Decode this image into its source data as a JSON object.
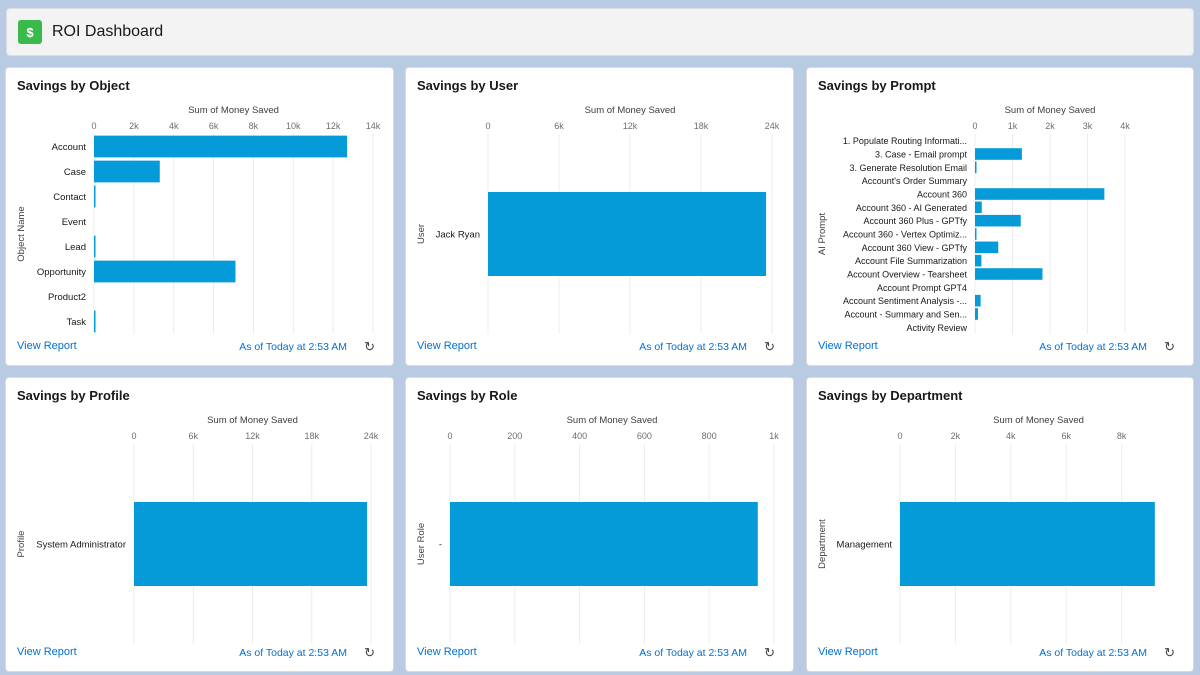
{
  "header": {
    "title": "ROI Dashboard",
    "icon": "money-bag-icon",
    "icon_color": "#3bba4c"
  },
  "colors": {
    "bar": "#049bd8",
    "link": "#0070d2"
  },
  "common": {
    "view_report": "View Report",
    "as_of": "As of Today at 2:53 AM"
  },
  "chart_data": [
    {
      "type": "bar",
      "orientation": "horizontal",
      "title": "Savings by Object",
      "xlabel": "Sum of Money Saved",
      "ylabel": "Object Name",
      "ticks": [
        "0",
        "2k",
        "4k",
        "6k",
        "8k",
        "10k",
        "12k",
        "14k"
      ],
      "xlim": [
        0,
        14000
      ],
      "categories": [
        "Account",
        "Case",
        "Contact",
        "Event",
        "Lead",
        "Opportunity",
        "Product2",
        "Task"
      ],
      "values": [
        12700,
        3300,
        60,
        0,
        20,
        7100,
        0,
        60
      ]
    },
    {
      "type": "bar",
      "orientation": "horizontal",
      "title": "Savings by User",
      "xlabel": "Sum of Money Saved",
      "ylabel": "User",
      "ticks": [
        "0",
        "6k",
        "12k",
        "18k",
        "24k"
      ],
      "xlim": [
        0,
        24000
      ],
      "categories": [
        "Jack Ryan"
      ],
      "values": [
        23500
      ]
    },
    {
      "type": "bar",
      "orientation": "horizontal",
      "title": "Savings by Prompt",
      "xlabel": "Sum of Money Saved",
      "ylabel": "AI Prompt",
      "ticks": [
        "0",
        "1k",
        "2k",
        "3k",
        "4k"
      ],
      "xlim": [
        0,
        4000
      ],
      "categories": [
        "1. Populate Routing Informati...",
        "3. Case - Email prompt",
        "3. Generate Resolution Email",
        "Account's Order Summary",
        "Account 360",
        "Account 360 - AI Generated",
        "Account 360 Plus - GPTfy",
        "Account 360 - Vertex Optimiz...",
        "Account 360 View - GPTfy",
        "Account File Summarization",
        "Account Overview - Tearsheet",
        "Account Prompt GPT4",
        "Account Sentiment Analysis -...",
        "Account - Summary and Sen...",
        "Activity Review"
      ],
      "values": [
        0,
        1250,
        20,
        0,
        3450,
        180,
        1220,
        20,
        620,
        170,
        1800,
        0,
        150,
        80,
        0
      ]
    },
    {
      "type": "bar",
      "orientation": "horizontal",
      "title": "Savings by Profile",
      "xlabel": "Sum of Money Saved",
      "ylabel": "Profile",
      "ticks": [
        "0",
        "6k",
        "12k",
        "18k",
        "24k"
      ],
      "xlim": [
        0,
        24000
      ],
      "categories": [
        "System Administrator"
      ],
      "values": [
        23600
      ]
    },
    {
      "type": "bar",
      "orientation": "horizontal",
      "title": "Savings by Role",
      "xlabel": "Sum of Money Saved",
      "ylabel": "User Role",
      "ticks": [
        "0",
        "200",
        "400",
        "600",
        "800",
        "1k"
      ],
      "xlim": [
        0,
        1000
      ],
      "categories": [
        "-"
      ],
      "values": [
        950
      ]
    },
    {
      "type": "bar",
      "orientation": "horizontal",
      "title": "Savings by Department",
      "xlabel": "Sum of Money Saved",
      "ylabel": "Department",
      "ticks": [
        "0",
        "2k",
        "4k",
        "6k",
        "8k"
      ],
      "xlim": [
        0,
        10000
      ],
      "categories": [
        "Management"
      ],
      "values": [
        9200
      ]
    }
  ]
}
